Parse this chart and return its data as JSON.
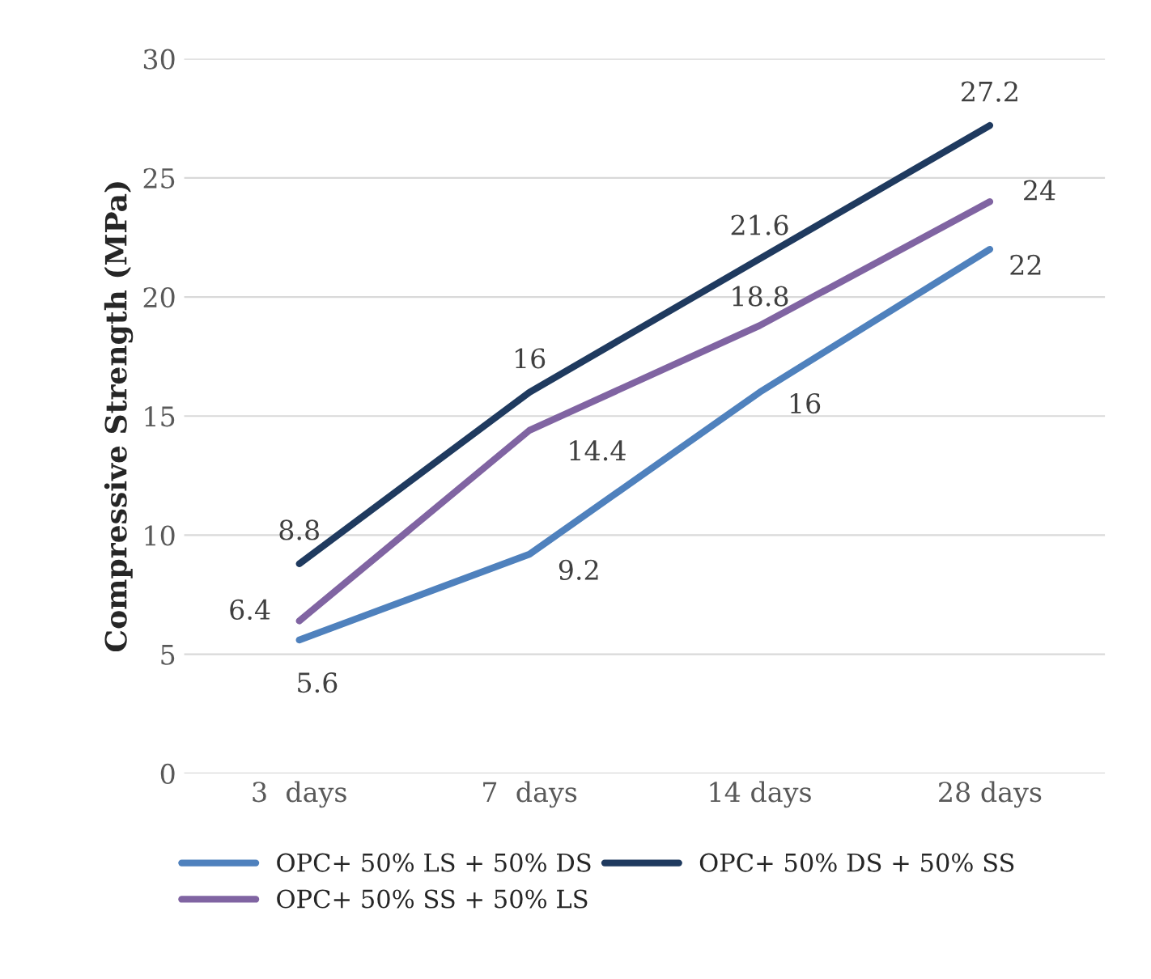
{
  "chart_data": {
    "type": "line",
    "ylabel": "Compressive Strength (MPa)",
    "categories": [
      "3  days",
      "7  days",
      "14 days",
      "28 days"
    ],
    "series": [
      {
        "name": "OPC+ 50% LS + 50% DS",
        "color": "#4f81bd",
        "values": [
          5.6,
          9.2,
          16,
          22
        ]
      },
      {
        "name": "OPC+ 50% SS + 50% LS",
        "color": "#8064a2",
        "values": [
          6.4,
          14.4,
          18.8,
          24
        ]
      },
      {
        "name": "OPC+ 50% DS + 50% SS",
        "color": "#1f3a5f",
        "values": [
          8.8,
          16,
          21.6,
          27.2
        ]
      }
    ],
    "ylim": [
      0,
      30
    ],
    "yticks": [
      0,
      5,
      10,
      15,
      20,
      25,
      30
    ],
    "grid": "y",
    "legend": "bottom",
    "data_labels": true,
    "marker": "none",
    "line_style": "solid"
  }
}
